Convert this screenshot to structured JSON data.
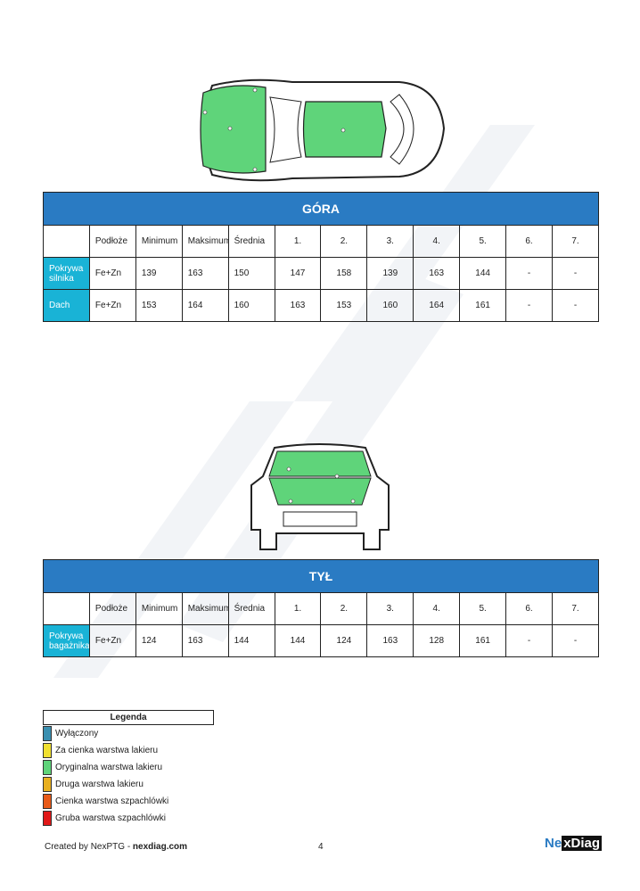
{
  "columns": [
    "",
    "Podłoże",
    "Minimum",
    "Maksimum",
    "Średnia",
    "1.",
    "2.",
    "3.",
    "4.",
    "5.",
    "6.",
    "7."
  ],
  "top": {
    "title": "GÓRA",
    "rows": [
      {
        "name": "Pokrywa silnika",
        "cells": [
          "Fe+Zn",
          "139",
          "163",
          "150",
          "147",
          "158",
          "139",
          "163",
          "144",
          "-",
          "-"
        ]
      },
      {
        "name": "Dach",
        "cells": [
          "Fe+Zn",
          "153",
          "164",
          "160",
          "163",
          "153",
          "160",
          "164",
          "161",
          "-",
          "-"
        ]
      }
    ]
  },
  "rear": {
    "title": "TYŁ",
    "rows": [
      {
        "name": "Pokrywa bagażnika",
        "cells": [
          "Fe+Zn",
          "124",
          "163",
          "144",
          "144",
          "124",
          "163",
          "128",
          "161",
          "-",
          "-"
        ]
      }
    ]
  },
  "legend": {
    "title": "Legenda",
    "items": [
      {
        "label": "Wyłączony",
        "color": "#3a8fb0"
      },
      {
        "label": "Za cienka warstwa lakieru",
        "color": "#f0e030"
      },
      {
        "label": "Oryginalna warstwa lakieru",
        "color": "#5fd47a"
      },
      {
        "label": "Druga warstwa lakieru",
        "color": "#e8b020"
      },
      {
        "label": "Cienka warstwa szpachlówki",
        "color": "#e85a18"
      },
      {
        "label": "Gruba warstwa szpachlówki",
        "color": "#e01818"
      }
    ]
  },
  "footer": {
    "created": "Created by NexPTG - ",
    "site": "nexdiag.com",
    "page": "4",
    "logo": "NexDiag"
  },
  "watermark": "NexDiag"
}
